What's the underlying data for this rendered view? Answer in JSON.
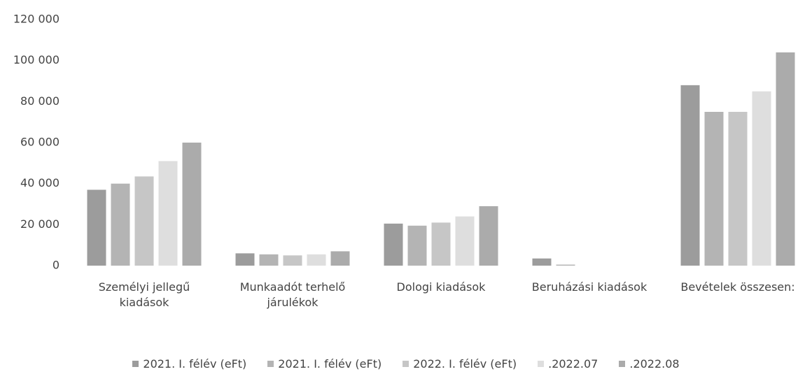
{
  "chart_data": {
    "type": "bar",
    "categories": [
      "Személyi jellegű kiadások",
      "Munkaadót terhelő járulékok",
      "Dologi kiadások",
      "Beruházási kiadások",
      "Bevételek összesen:"
    ],
    "series": [
      {
        "name": "2021. I. félév (eFt)",
        "color": "#9c9c9c",
        "values": [
          37000,
          6000,
          20500,
          3500,
          88000
        ]
      },
      {
        "name": "2021. I. félév (eFt)",
        "color": "#b4b4b4",
        "values": [
          40000,
          5500,
          19500,
          500,
          75000
        ]
      },
      {
        "name": "2022. I. félév (eFt)",
        "color": "#c6c6c6",
        "values": [
          43500,
          5000,
          21000,
          0,
          75000
        ]
      },
      {
        "name": ".2022.07",
        "color": "#dedede",
        "values": [
          51000,
          5500,
          24000,
          0,
          85000
        ]
      },
      {
        "name": ".2022.08",
        "color": "#ababab",
        "values": [
          60000,
          7000,
          29000,
          0,
          104000
        ]
      }
    ],
    "ylim": [
      0,
      120000
    ],
    "yticks": [
      0,
      {
        "value": 20000,
        "label": "20 000"
      },
      {
        "value": 40000,
        "label": "40 000"
      },
      {
        "value": 60000,
        "label": "60 000"
      },
      {
        "value": 80000,
        "label": "80 000"
      },
      {
        "value": 100000,
        "label": "100 000"
      },
      {
        "value": 120000,
        "label": "120 000"
      }
    ],
    "legend": "bottom"
  }
}
